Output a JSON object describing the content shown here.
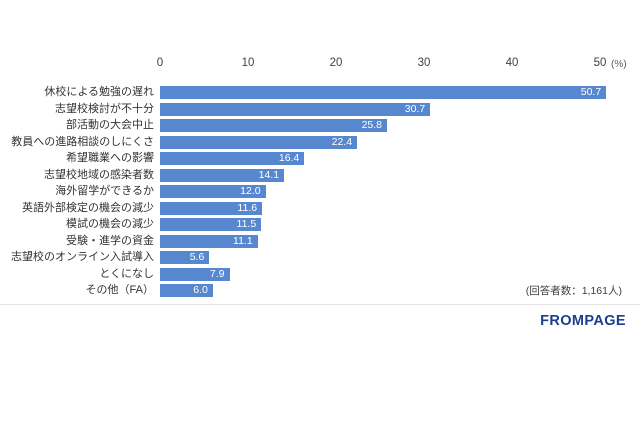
{
  "chart_data": {
    "type": "bar",
    "orientation": "horizontal",
    "title": "",
    "categories": [
      "休校による勉強の遅れ",
      "志望校検討が不十分",
      "部活動の大会中止",
      "教員への進路相談のしにくさ",
      "希望職業への影響",
      "志望校地域の感染者数",
      "海外留学ができるか",
      "英語外部検定の機会の減少",
      "模試の機会の減少",
      "受験・進学の資金",
      "志望校のオンライン入試導入",
      "とくになし",
      "その他（FA）"
    ],
    "values": [
      50.7,
      30.7,
      25.8,
      22.4,
      16.4,
      14.1,
      12.0,
      11.6,
      11.5,
      11.1,
      5.6,
      7.9,
      6.0
    ],
    "value_labels": [
      "50.7",
      "30.7",
      "25.8",
      "22.4",
      "16.4",
      "14.1",
      "12.0",
      "11.6",
      "11.5",
      "11.1",
      "5.6",
      "7.9",
      "6.0"
    ],
    "xlim": [
      0,
      50
    ],
    "x_ticks": [
      "0",
      "10",
      "20",
      "30",
      "40",
      "50"
    ],
    "x_unit": "(%)",
    "grid": false,
    "legend": false,
    "bar_color": "#5787CF",
    "value_label_color": "#FFFFFF"
  },
  "note": "(回答者数：1,161人)",
  "logo": "FROMPAGE",
  "colors": {
    "logo": "#1B3E91",
    "axis_text": "#404040",
    "category_text": "#333333",
    "divider": "#E3E3E3",
    "background": "#FFFFFF"
  }
}
